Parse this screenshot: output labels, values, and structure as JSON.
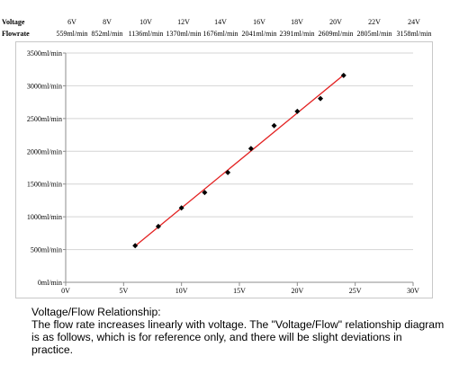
{
  "spec_table": {
    "voltage_label": "Voltage",
    "flowrate_label": "Flowrate",
    "voltages": [
      "6V",
      "8V",
      "10V",
      "12V",
      "14V",
      "16V",
      "18V",
      "20V",
      "22V",
      "24V"
    ],
    "flowrates": [
      "559ml/min",
      "852ml/min",
      "1136ml/min",
      "1370ml/min",
      "1676ml/min",
      "2041ml/min",
      "2391ml/min",
      "2609ml/min",
      "2805ml/min",
      "3158ml/min"
    ]
  },
  "chart_data": {
    "type": "scatter",
    "x": [
      6,
      8,
      10,
      12,
      14,
      16,
      18,
      20,
      22,
      24
    ],
    "y": [
      559,
      852,
      1136,
      1370,
      1676,
      2041,
      2391,
      2609,
      2805,
      3158
    ],
    "xlim": [
      0,
      30
    ],
    "ylim": [
      0,
      3500
    ],
    "x_tick_values": [
      0,
      5,
      10,
      15,
      20,
      25,
      30
    ],
    "x_tick_labels": [
      "0V",
      "5V",
      "10V",
      "15V",
      "20V",
      "25V",
      "30V"
    ],
    "y_tick_values": [
      0,
      500,
      1000,
      1500,
      2000,
      2500,
      3000,
      3500
    ],
    "y_tick_labels": [
      "0ml/min",
      "500ml/min",
      "1000ml/min",
      "1500ml/min",
      "2000ml/min",
      "2500ml/min",
      "3000ml/min",
      "3500ml/min"
    ],
    "trendline": {
      "type": "linear",
      "color": "#e32222"
    },
    "marker": {
      "shape": "diamond",
      "color": "#000000"
    },
    "grid": "horizontal",
    "grid_color": "#d4d4d4",
    "title": "",
    "xlabel": "",
    "ylabel": ""
  },
  "caption": {
    "title": "Voltage/Flow Relationship:",
    "body": "The flow rate increases linearly with voltage. The \"Voltage/Flow\" relationship diagram is as follows, which is for reference only, and there will be slight deviations in practice."
  }
}
